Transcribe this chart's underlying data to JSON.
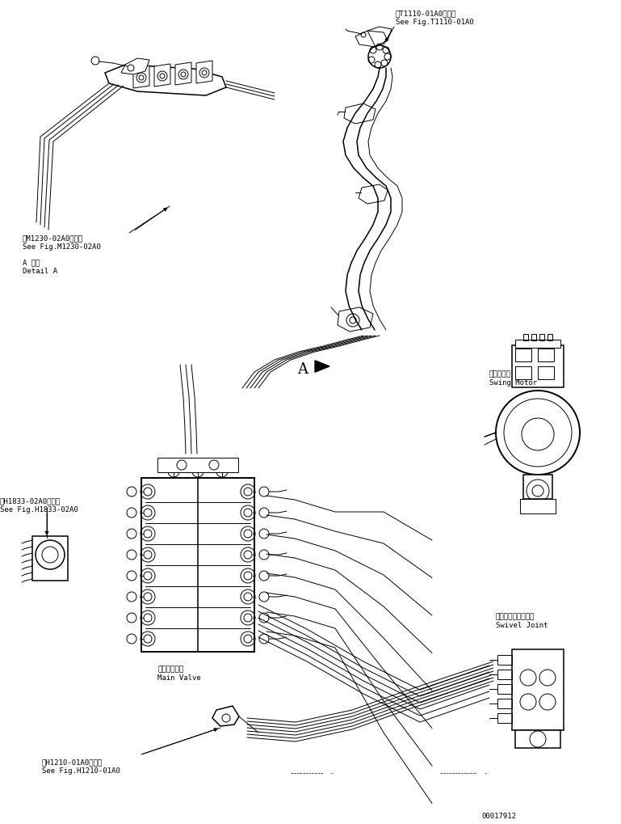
{
  "bg_color": "#ffffff",
  "line_color": "#000000",
  "labels": {
    "fig_t1110": "第T1110-01A0図参照\nSee Fig.T1110-01A0",
    "fig_m1230": "第M1230-02A0図参照\nSee Fig.M1230-02A0",
    "detail_a": "A 詳細\nDetail A",
    "fig_h1833": "第H1833-02A0図参照\nSee Fig.H1833-02A0",
    "main_valve": "メインバルブ\nMain Valve",
    "fig_h1210": "第H1210-01A0図参照\nSee Fig.H1210-01A0",
    "swing_motor": "旋回モータ\nSwing Motor",
    "swivel_joint": "スイベルジョイント\nSwivel Joint",
    "part_number": "00017912",
    "label_a": "A"
  },
  "font_size": 6.5,
  "line_width": 0.7
}
